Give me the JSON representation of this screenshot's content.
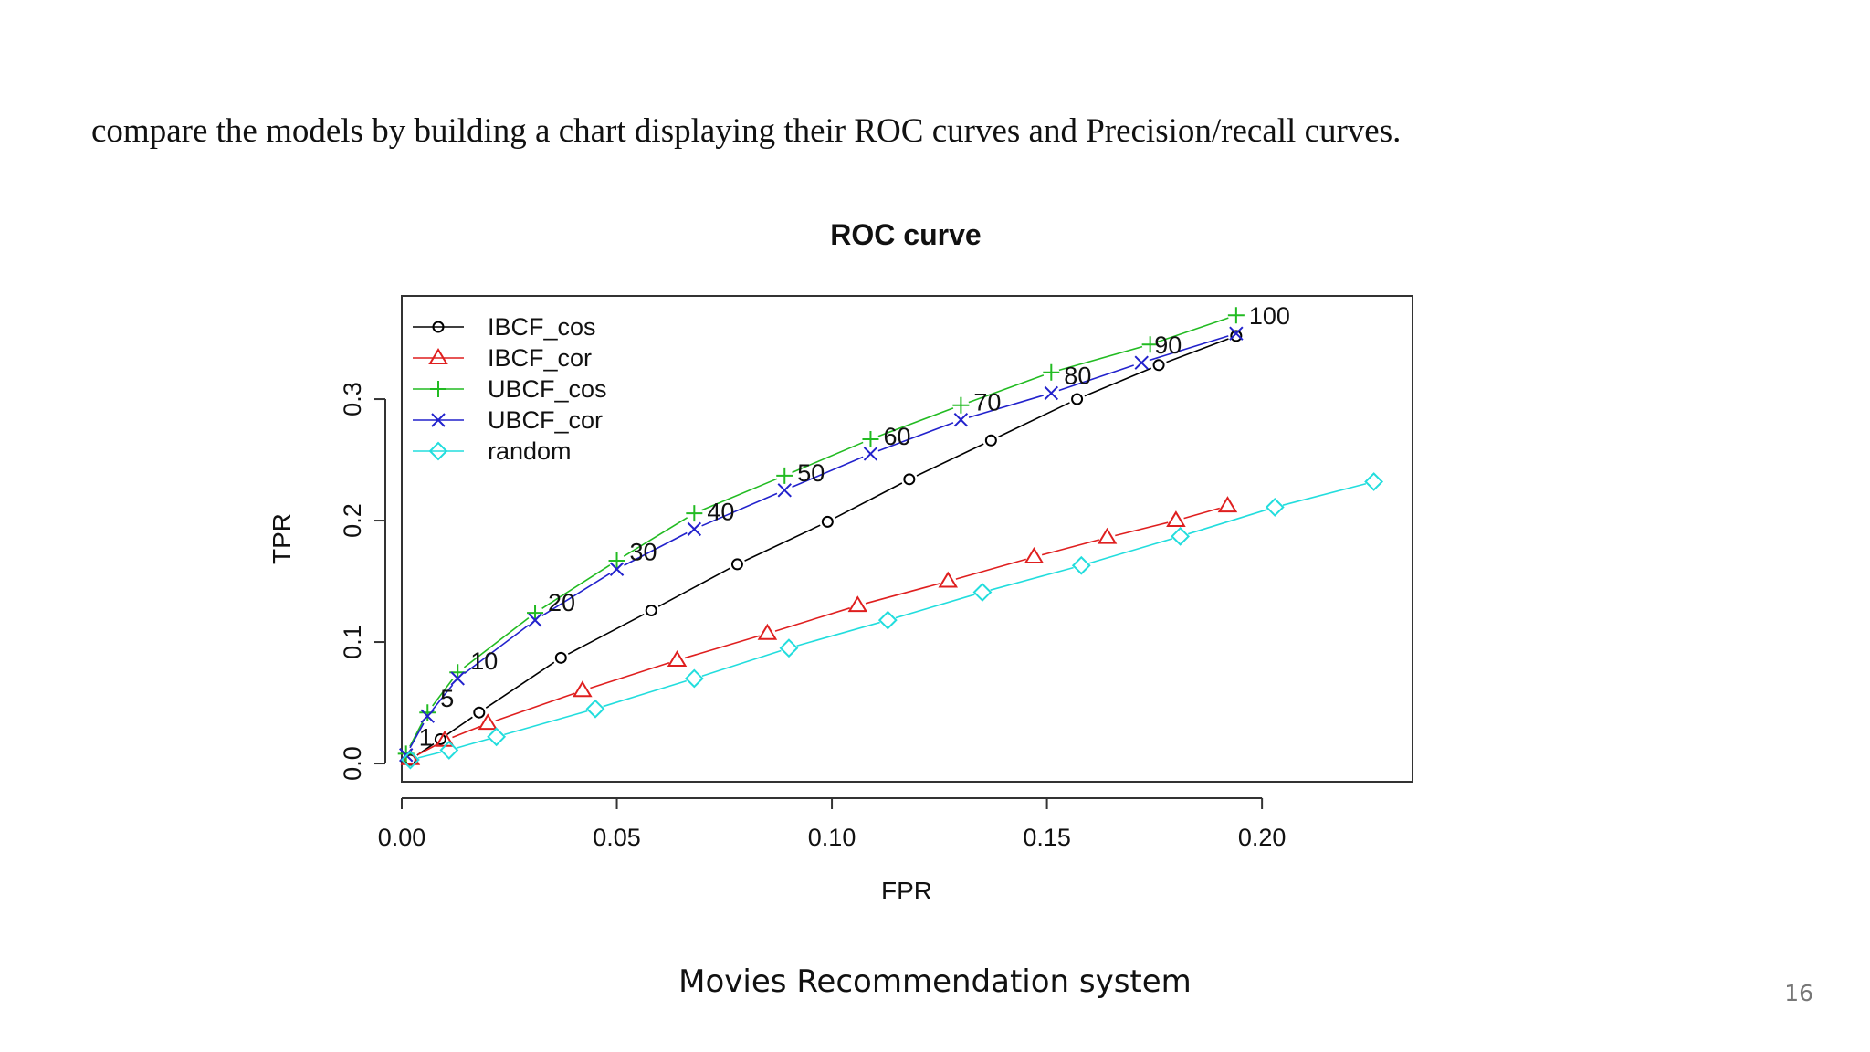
{
  "slide": {
    "intro_text": "compare the models by building a chart displaying their ROC curves and Precision/recall curves.",
    "footer_title": "Movies Recommendation system",
    "page_number": "16"
  },
  "chart_data": {
    "type": "line",
    "title": "ROC curve",
    "xlabel": "FPR",
    "ylabel": "TPR",
    "xlim": [
      0.0,
      0.235
    ],
    "ylim": [
      -0.015,
      0.385
    ],
    "x_ticks": [
      "0.00",
      "0.05",
      "0.10",
      "0.15",
      "0.20"
    ],
    "y_ticks": [
      "0.0",
      "0.1",
      "0.2",
      "0.3"
    ],
    "legend_position": "top-left",
    "grid": false,
    "series": [
      {
        "name": "IBCF_cos",
        "color": "#000000",
        "marker": "circle",
        "x": [
          0.002,
          0.009,
          0.018,
          0.037,
          0.058,
          0.078,
          0.099,
          0.118,
          0.137,
          0.157,
          0.176,
          0.194
        ],
        "y": [
          0.003,
          0.02,
          0.042,
          0.087,
          0.126,
          0.164,
          0.199,
          0.234,
          0.266,
          0.3,
          0.328,
          0.352
        ]
      },
      {
        "name": "IBCF_cor",
        "color": "#df1f1f",
        "marker": "triangle",
        "x": [
          0.002,
          0.01,
          0.02,
          0.042,
          0.064,
          0.085,
          0.106,
          0.127,
          0.147,
          0.164,
          0.18,
          0.192
        ],
        "y": [
          0.004,
          0.019,
          0.033,
          0.06,
          0.085,
          0.107,
          0.13,
          0.15,
          0.17,
          0.186,
          0.2,
          0.212
        ]
      },
      {
        "name": "UBCF_cos",
        "color": "#22bb22",
        "marker": "plus",
        "x": [
          0.001,
          0.006,
          0.013,
          0.031,
          0.05,
          0.068,
          0.089,
          0.109,
          0.13,
          0.151,
          0.174,
          0.194
        ],
        "y": [
          0.008,
          0.042,
          0.075,
          0.124,
          0.167,
          0.206,
          0.237,
          0.267,
          0.295,
          0.322,
          0.345,
          0.369
        ]
      },
      {
        "name": "UBCF_cor",
        "color": "#2222cc",
        "marker": "x",
        "x": [
          0.001,
          0.006,
          0.013,
          0.031,
          0.05,
          0.068,
          0.089,
          0.109,
          0.13,
          0.151,
          0.172,
          0.194
        ],
        "y": [
          0.007,
          0.039,
          0.07,
          0.118,
          0.16,
          0.193,
          0.225,
          0.255,
          0.283,
          0.305,
          0.33,
          0.354
        ]
      },
      {
        "name": "random",
        "color": "#22dddd",
        "marker": "diamond",
        "x": [
          0.002,
          0.011,
          0.022,
          0.045,
          0.068,
          0.09,
          0.113,
          0.135,
          0.158,
          0.181,
          0.203,
          0.226
        ],
        "y": [
          0.003,
          0.011,
          0.022,
          0.045,
          0.07,
          0.095,
          0.118,
          0.141,
          0.163,
          0.187,
          0.211,
          0.232
        ]
      }
    ],
    "point_labels": [
      "1",
      "5",
      "10",
      "20",
      "30",
      "40",
      "50",
      "60",
      "70",
      "80",
      "90",
      "100"
    ]
  }
}
